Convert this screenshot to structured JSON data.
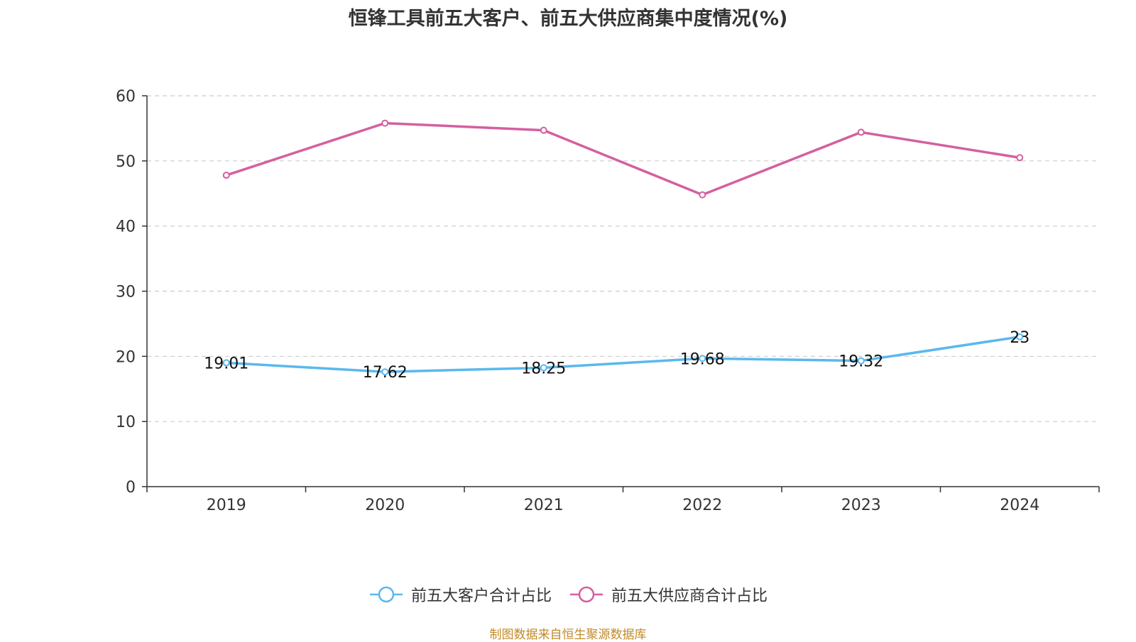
{
  "chart_data": {
    "type": "line",
    "title": "恒锋工具前五大客户、前五大供应商集中度情况(%)",
    "categories": [
      "2019",
      "2020",
      "2021",
      "2022",
      "2023",
      "2024"
    ],
    "y_ticks": [
      "0",
      "10",
      "20",
      "30",
      "40",
      "50",
      "60"
    ],
    "ylim": [
      0,
      60
    ],
    "grid": "dashed horizontal",
    "legend_position": "bottom-center",
    "series": [
      {
        "name": "前五大客户合计占比",
        "color": "#5ab8ee",
        "values": [
          19.01,
          17.62,
          18.25,
          19.68,
          19.32,
          23
        ],
        "labels": [
          "19.01",
          "17.62",
          "18.25",
          "19.68",
          "19.32",
          "23"
        ]
      },
      {
        "name": "前五大供应商合计占比",
        "color": "#d4609f",
        "values": [
          47.8,
          55.8,
          54.7,
          44.8,
          54.4,
          50.5
        ]
      }
    ]
  },
  "footer": {
    "source": "制图数据来自恒生聚源数据库"
  }
}
